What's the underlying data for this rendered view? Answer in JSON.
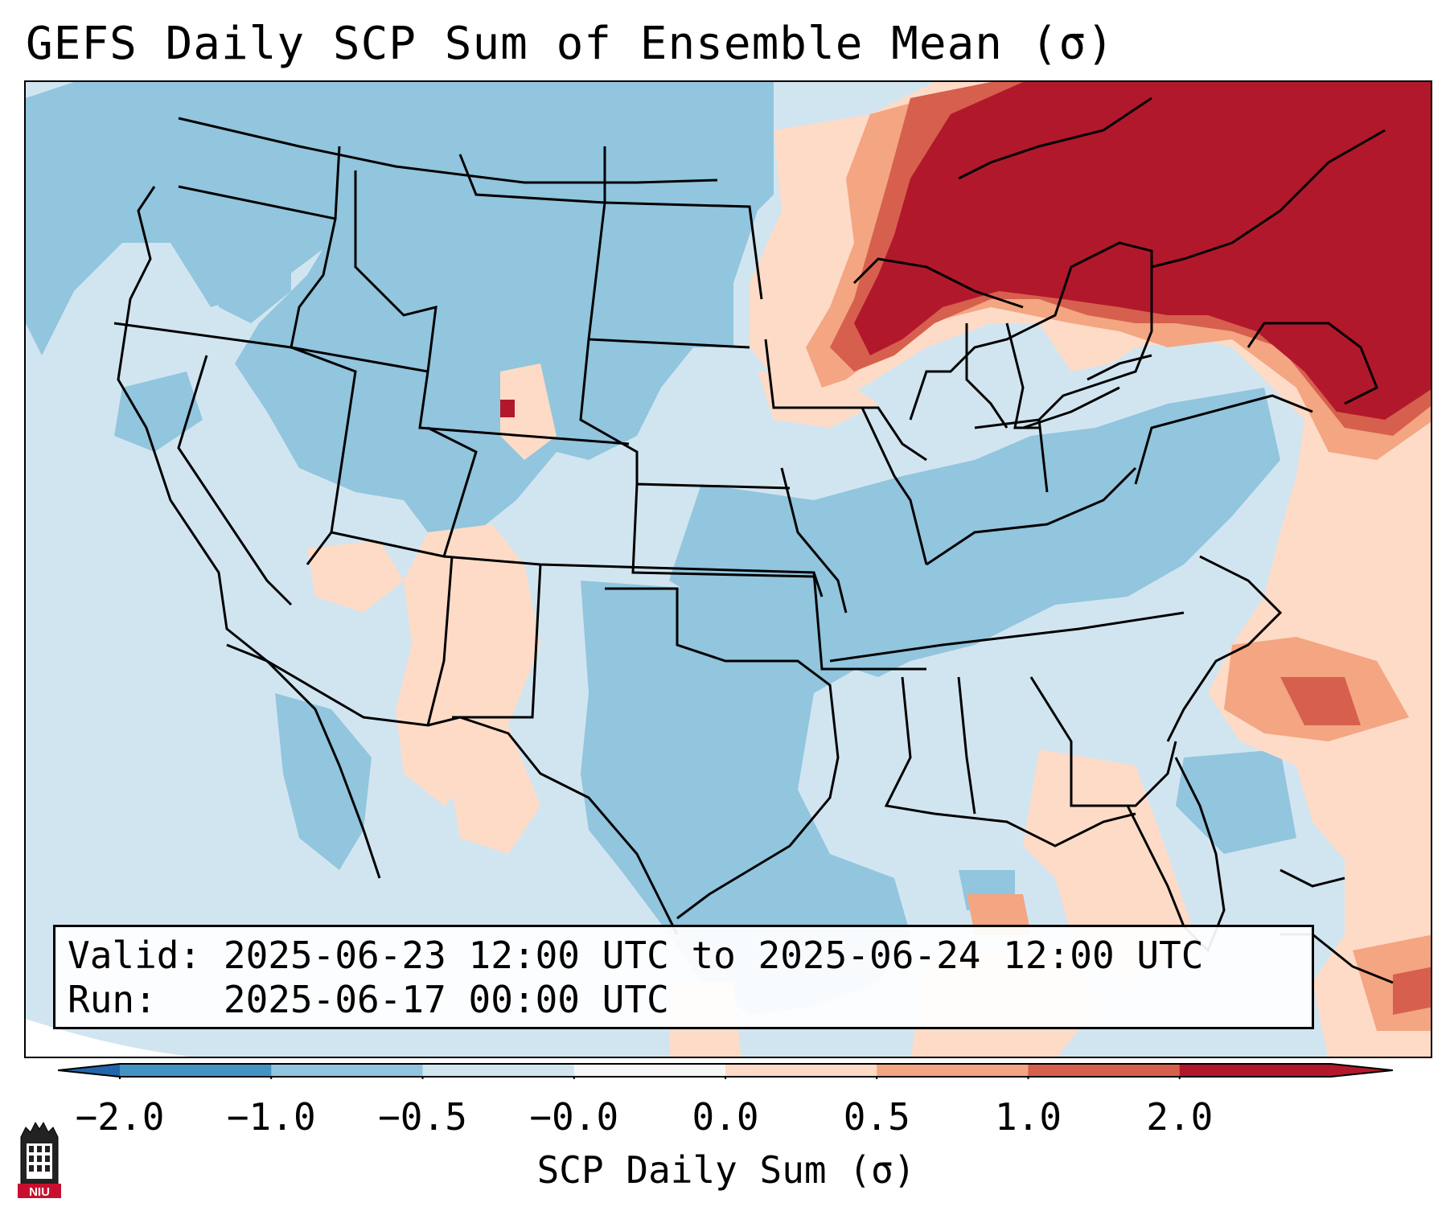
{
  "title": "GEFS Daily SCP Sum of Ensemble Mean (σ)",
  "info": {
    "valid_label": "Valid:",
    "valid_value": "2025-06-23 12:00 UTC to 2025-06-24 12:00 UTC",
    "run_label": "Run:",
    "run_value": "2025-06-17 00:00 UTC"
  },
  "colorbar": {
    "label": "SCP Daily Sum (σ)",
    "ticks": [
      "−2.0",
      "−1.0",
      "−0.5",
      "−0.0",
      "0.0",
      "0.5",
      "1.0",
      "2.0"
    ],
    "colors": [
      "#4393c3",
      "#92c5de",
      "#d1e5f0",
      "#f7f7f7",
      "#fddbc7",
      "#f4a582",
      "#d6604d",
      "#b2182b"
    ],
    "under_color": "#2166ac",
    "over_color": "#b2182b"
  },
  "logo": {
    "text": "NIU",
    "icon": "niu-tower-icon"
  }
}
